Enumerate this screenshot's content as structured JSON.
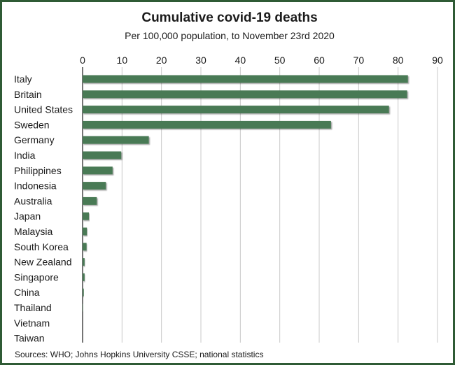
{
  "chart_data": {
    "type": "bar",
    "orientation": "horizontal",
    "title": "Cumulative covid-19 deaths",
    "subtitle": "Per 100,000 population, to November 23rd 2020",
    "source": "Sources: WHO; Johns Hopkins University CSSE; national statistics",
    "xlim": [
      0,
      90
    ],
    "ticks": [
      0,
      10,
      20,
      30,
      40,
      50,
      60,
      70,
      80,
      90
    ],
    "grid": true,
    "categories": [
      "Italy",
      "Britain",
      "United States",
      "Sweden",
      "Germany",
      "India",
      "Philippines",
      "Indonesia",
      "Australia",
      "Japan",
      "Malaysia",
      "South Korea",
      "New Zealand",
      "Singapore",
      "China",
      "Thailand",
      "Vietnam",
      "Taiwan"
    ],
    "values": [
      82.5,
      82.3,
      77.7,
      63.0,
      16.8,
      9.8,
      7.6,
      5.9,
      3.6,
      1.6,
      1.1,
      1.0,
      0.5,
      0.5,
      0.3,
      0.1,
      0.0,
      0.0
    ],
    "colors": {
      "bar": "#4a7a55",
      "grid": "#c8c8c8",
      "frame": "#2f5b35",
      "axis": "#1a1a1a"
    }
  }
}
